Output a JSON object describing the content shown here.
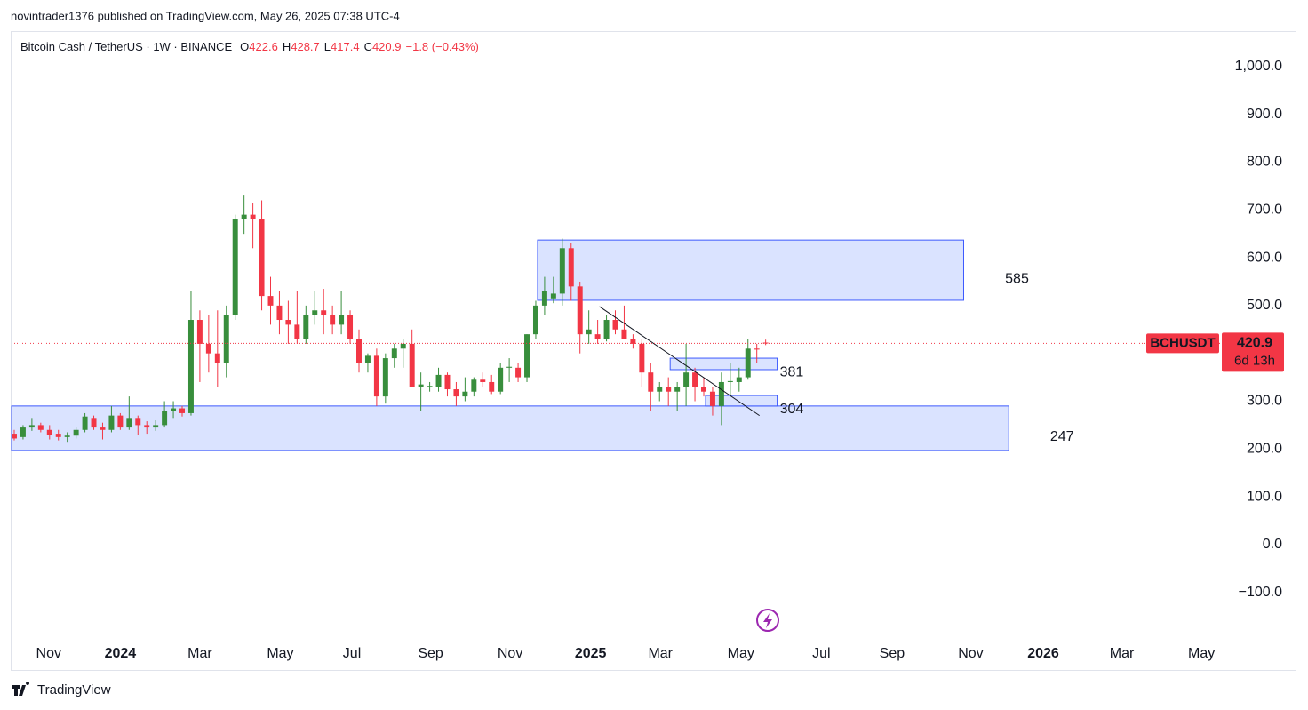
{
  "publisher": "novintrader1376 published on TradingView.com, May 26, 2025 07:38 UTC-4",
  "footer": "TradingView",
  "chart_data": {
    "type": "candlestick",
    "symbol_line": "Bitcoin Cash / TetherUS · 1W · BINANCE",
    "ohlc_letters": [
      "O",
      "H",
      "L",
      "C"
    ],
    "change_label": "−1.8 (−0.43%)",
    "ticker": "BCHUSDT",
    "countdown": "6d 13h",
    "up_color": "#388e3c",
    "down_color": "#f23645",
    "zone_color": "#d6e0ff",
    "zone_border": "#3d5afe",
    "ylim": [
      -199,
      1074
    ],
    "yticks": [
      {
        "value": -100,
        "label": "−100.0"
      },
      {
        "value": 0,
        "label": "0.0"
      },
      {
        "value": 100,
        "label": "100.0"
      },
      {
        "value": 200,
        "label": "200.0"
      },
      {
        "value": 300,
        "label": "300.0"
      },
      {
        "value": 400,
        "label": "400.0"
      },
      {
        "value": 500,
        "label": "500.0"
      },
      {
        "value": 600,
        "label": "600.0"
      },
      {
        "value": 700,
        "label": "700.0"
      },
      {
        "value": 800,
        "label": "800.0"
      },
      {
        "value": 900,
        "label": "900.0"
      },
      {
        "value": 1000,
        "label": "1,000.0"
      }
    ],
    "xlim": [
      -0.3,
      136.6
    ],
    "xticks": [
      {
        "value": 3.9,
        "label": "Nov"
      },
      {
        "value": 12.0,
        "label": "2024"
      },
      {
        "value": 21.0,
        "label": "Mar"
      },
      {
        "value": 30.1,
        "label": "May"
      },
      {
        "value": 38.2,
        "label": "Jul"
      },
      {
        "value": 47.1,
        "label": "Sep"
      },
      {
        "value": 56.1,
        "label": "Nov"
      },
      {
        "value": 65.2,
        "label": "2025"
      },
      {
        "value": 73.1,
        "label": "Mar"
      },
      {
        "value": 82.2,
        "label": "May"
      },
      {
        "value": 91.3,
        "label": "Jul"
      },
      {
        "value": 99.3,
        "label": "Sep"
      },
      {
        "value": 108.2,
        "label": "Nov"
      },
      {
        "value": 116.4,
        "label": "2026"
      },
      {
        "value": 125.3,
        "label": "Mar"
      },
      {
        "value": 134.3,
        "label": "May"
      }
    ],
    "candles": [
      [
        232,
        240,
        218,
        222
      ],
      [
        225,
        250,
        220,
        245
      ],
      [
        245,
        265,
        238,
        250
      ],
      [
        250,
        255,
        235,
        240
      ],
      [
        240,
        250,
        220,
        230
      ],
      [
        232,
        240,
        218,
        225
      ],
      [
        225,
        235,
        215,
        228
      ],
      [
        228,
        245,
        222,
        240
      ],
      [
        240,
        275,
        235,
        268
      ],
      [
        265,
        270,
        240,
        245
      ],
      [
        245,
        255,
        220,
        240
      ],
      [
        240,
        290,
        235,
        270
      ],
      [
        270,
        275,
        240,
        245
      ],
      [
        245,
        310,
        240,
        265
      ],
      [
        265,
        270,
        230,
        250
      ],
      [
        250,
        258,
        232,
        245
      ],
      [
        245,
        260,
        238,
        250
      ],
      [
        250,
        300,
        245,
        280
      ],
      [
        280,
        300,
        265,
        285
      ],
      [
        285,
        290,
        268,
        275
      ],
      [
        275,
        530,
        270,
        470
      ],
      [
        470,
        490,
        340,
        420
      ],
      [
        420,
        480,
        360,
        400
      ],
      [
        400,
        490,
        330,
        380
      ],
      [
        380,
        500,
        350,
        480
      ],
      [
        480,
        690,
        470,
        680
      ],
      [
        680,
        730,
        650,
        690
      ],
      [
        690,
        715,
        620,
        680
      ],
      [
        680,
        720,
        490,
        520
      ],
      [
        520,
        560,
        460,
        500
      ],
      [
        500,
        530,
        440,
        470
      ],
      [
        470,
        510,
        420,
        460
      ],
      [
        460,
        530,
        420,
        430
      ],
      [
        430,
        500,
        420,
        480
      ],
      [
        480,
        530,
        460,
        490
      ],
      [
        490,
        535,
        440,
        480
      ],
      [
        480,
        500,
        440,
        460
      ],
      [
        460,
        530,
        440,
        480
      ],
      [
        480,
        490,
        420,
        430
      ],
      [
        430,
        450,
        360,
        380
      ],
      [
        380,
        400,
        360,
        395
      ],
      [
        395,
        410,
        290,
        310
      ],
      [
        310,
        400,
        295,
        390
      ],
      [
        390,
        420,
        370,
        410
      ],
      [
        410,
        430,
        370,
        420
      ],
      [
        420,
        450,
        330,
        330
      ],
      [
        330,
        360,
        280,
        335
      ],
      [
        330,
        340,
        320,
        332
      ],
      [
        330,
        370,
        320,
        355
      ],
      [
        355,
        360,
        310,
        325
      ],
      [
        325,
        340,
        290,
        310
      ],
      [
        310,
        350,
        300,
        320
      ],
      [
        320,
        350,
        310,
        345
      ],
      [
        345,
        360,
        330,
        340
      ],
      [
        340,
        355,
        315,
        320
      ],
      [
        320,
        380,
        315,
        370
      ],
      [
        370,
        390,
        340,
        372
      ],
      [
        370,
        380,
        340,
        350
      ],
      [
        350,
        440,
        340,
        440
      ],
      [
        440,
        510,
        430,
        500
      ],
      [
        500,
        560,
        480,
        530
      ],
      [
        515,
        560,
        505,
        525
      ],
      [
        525,
        640,
        500,
        620
      ],
      [
        620,
        630,
        510,
        540
      ],
      [
        540,
        550,
        400,
        440
      ],
      [
        440,
        490,
        420,
        450
      ],
      [
        440,
        470,
        420,
        430
      ],
      [
        430,
        480,
        425,
        470
      ],
      [
        470,
        490,
        440,
        450
      ],
      [
        450,
        500,
        430,
        430
      ],
      [
        430,
        440,
        410,
        420
      ],
      [
        420,
        430,
        330,
        360
      ],
      [
        360,
        380,
        280,
        320
      ],
      [
        320,
        340,
        300,
        330
      ],
      [
        330,
        350,
        290,
        320
      ],
      [
        320,
        340,
        280,
        330
      ],
      [
        330,
        420,
        290,
        360
      ],
      [
        360,
        370,
        300,
        330
      ],
      [
        330,
        350,
        310,
        320
      ],
      [
        320,
        330,
        270,
        290
      ],
      [
        290,
        360,
        250,
        340
      ],
      [
        340,
        380,
        310,
        342
      ],
      [
        340,
        370,
        320,
        350
      ],
      [
        350,
        430,
        345,
        410
      ],
      [
        410,
        420,
        380,
        408
      ],
      [
        422.6,
        428.7,
        417.4,
        420.9
      ]
    ],
    "zones": [
      {
        "start": 59.2,
        "end": 107.4,
        "top": 637,
        "bottom": 511,
        "label": 585
      },
      {
        "start": -0.3,
        "end": 112.5,
        "top": 290,
        "bottom": 197,
        "label": 247
      },
      {
        "start": 74.2,
        "end": 86.3,
        "top": 390,
        "bottom": 366,
        "label": 381
      },
      {
        "start": 78.2,
        "end": 86.3,
        "top": 312,
        "bottom": 290,
        "label": 304
      }
    ],
    "trendline": {
      "x": [
        66.2,
        84.3
      ],
      "y": [
        498,
        270
      ]
    }
  }
}
